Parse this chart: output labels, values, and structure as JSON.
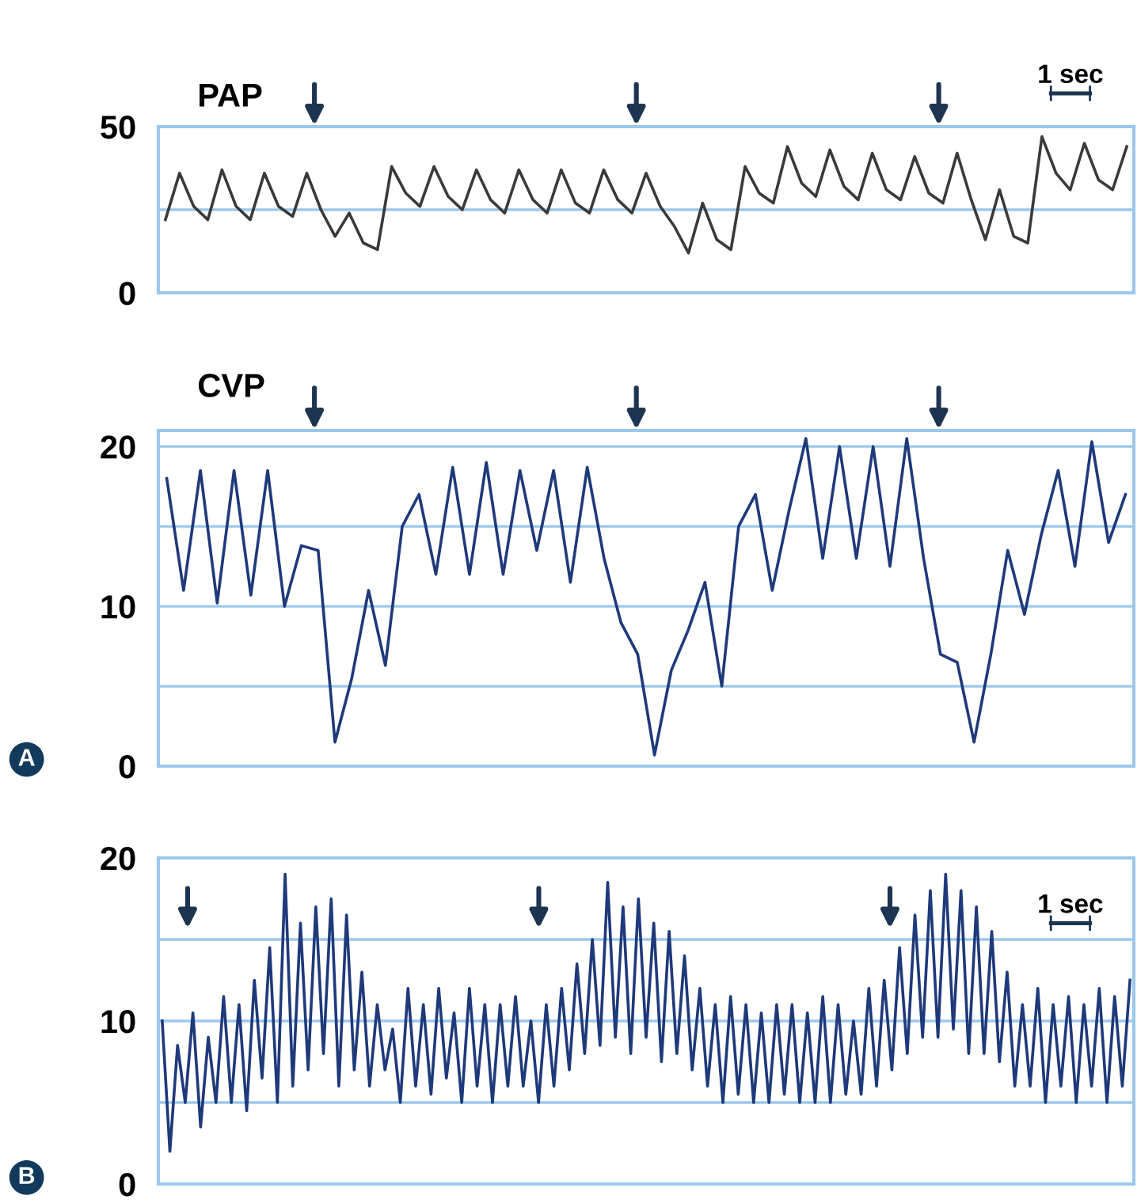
{
  "chart_data": [
    {
      "type": "line",
      "title": "PAP",
      "annotations": [
        "1 sec"
      ],
      "ylim": [
        0,
        50
      ],
      "yticks": [
        0,
        50
      ],
      "ref_lines": [
        {
          "axis": "y",
          "value": 25
        }
      ],
      "grid": "y",
      "tick_labels": "y",
      "legend": false,
      "categories": [
        null,
        null,
        null,
        null,
        null,
        null,
        null,
        null,
        null,
        null,
        null,
        null,
        null,
        null,
        null,
        null,
        null,
        null,
        null,
        null,
        null,
        null,
        null,
        null,
        null,
        null,
        null,
        null,
        null,
        null,
        null,
        null,
        null,
        null,
        null,
        null,
        null,
        null,
        null,
        null,
        null,
        null,
        null,
        null,
        null,
        null,
        null,
        null,
        null,
        null,
        null,
        null,
        null,
        null,
        null,
        null,
        null,
        null,
        null,
        null,
        null,
        null,
        null,
        null,
        null,
        null,
        null,
        null,
        null
      ],
      "series": [
        {
          "color": "#3a3a3a",
          "values": [
            22,
            36,
            26,
            22,
            37,
            26,
            22,
            36,
            26,
            23,
            36,
            25,
            17,
            24,
            15,
            13,
            38,
            30,
            26,
            38,
            29,
            25,
            37,
            28,
            24,
            37,
            28,
            24,
            37,
            27,
            24,
            37,
            28,
            24,
            36,
            26,
            20,
            12,
            27,
            16,
            13,
            38,
            30,
            27,
            44,
            33,
            29,
            43,
            32,
            28,
            42,
            31,
            28,
            41,
            30,
            27,
            42,
            28,
            16,
            31,
            17,
            15,
            47,
            36,
            31,
            45,
            34,
            31,
            44
          ]
        }
      ]
    },
    {
      "type": "line",
      "title": "CVP",
      "annotations": [
        "A"
      ],
      "ylim": [
        0,
        21
      ],
      "yticks": [
        0,
        10,
        20
      ],
      "ref_lines": [
        {
          "axis": "y",
          "value": 5
        },
        {
          "axis": "y",
          "value": 15
        }
      ],
      "grid": "y",
      "tick_labels": "y",
      "legend": false,
      "categories": [
        null,
        null,
        null,
        null,
        null,
        null,
        null,
        null,
        null,
        null,
        null,
        null,
        null,
        null,
        null,
        null,
        null,
        null,
        null,
        null,
        null,
        null,
        null,
        null,
        null,
        null,
        null,
        null,
        null,
        null,
        null,
        null,
        null,
        null,
        null,
        null,
        null,
        null,
        null,
        null,
        null,
        null,
        null,
        null,
        null,
        null,
        null,
        null,
        null,
        null,
        null,
        null,
        null,
        null,
        null,
        null,
        null,
        null
      ],
      "series": [
        {
          "color": "#1f3a7a",
          "values": [
            18,
            11,
            18.5,
            10.2,
            18.5,
            10.7,
            18.5,
            10,
            13.8,
            13.5,
            1.5,
            5.5,
            11,
            6.3,
            15,
            17,
            12,
            18.7,
            12,
            19,
            12,
            18.5,
            13.5,
            18.5,
            11.5,
            18.7,
            13,
            9,
            7,
            0.7,
            6,
            8.5,
            11.5,
            5,
            15,
            17,
            11,
            16,
            20.5,
            13,
            20,
            13,
            20,
            12.5,
            20.5,
            13,
            7,
            6.5,
            1.5,
            7,
            13.5,
            9.5,
            14.5,
            18.5,
            12.5,
            20.3,
            14,
            17
          ]
        }
      ]
    },
    {
      "type": "line",
      "annotations": [
        "1 sec",
        "B"
      ],
      "ylim": [
        0,
        20
      ],
      "yticks": [
        0,
        10,
        20
      ],
      "ref_lines": [
        {
          "axis": "y",
          "value": 5
        },
        {
          "axis": "y",
          "value": 10
        },
        {
          "axis": "y",
          "value": 15
        }
      ],
      "grid": false,
      "tick_labels": "y",
      "legend": false,
      "categories": [
        null,
        null,
        null,
        null,
        null,
        null,
        null,
        null,
        null,
        null,
        null,
        null,
        null,
        null,
        null,
        null,
        null,
        null,
        null,
        null,
        null,
        null,
        null,
        null,
        null,
        null,
        null,
        null,
        null,
        null,
        null,
        null,
        null,
        null,
        null,
        null,
        null,
        null,
        null,
        null,
        null,
        null,
        null,
        null,
        null,
        null,
        null,
        null,
        null,
        null,
        null,
        null,
        null,
        null,
        null,
        null,
        null,
        null,
        null,
        null,
        null,
        null,
        null,
        null,
        null,
        null,
        null,
        null,
        null,
        null,
        null,
        null,
        null,
        null,
        null,
        null,
        null,
        null,
        null,
        null,
        null,
        null,
        null,
        null,
        null,
        null,
        null,
        null,
        null,
        null,
        null,
        null,
        null,
        null,
        null,
        null,
        null,
        null,
        null,
        null,
        null,
        null,
        null,
        null,
        null,
        null,
        null,
        null,
        null,
        null,
        null,
        null,
        null,
        null,
        null,
        null,
        null,
        null,
        null,
        null,
        null,
        null,
        null,
        null,
        null,
        null,
        null
      ],
      "series": [
        {
          "color": "#1f3a7a",
          "values": [
            10,
            2,
            8.5,
            5,
            10.5,
            3.5,
            9,
            5,
            11.5,
            5,
            11,
            4.5,
            12.5,
            6.5,
            14.5,
            5,
            19,
            6,
            16,
            7,
            17,
            8,
            17.5,
            6,
            16.5,
            7,
            13,
            6,
            11,
            7,
            9.5,
            5,
            12,
            6,
            11,
            5.5,
            12,
            6.5,
            10.5,
            5,
            12,
            6,
            11,
            5,
            11,
            6,
            11.5,
            6,
            10,
            5,
            11,
            6,
            12,
            7,
            13.5,
            8,
            15,
            8.5,
            18.5,
            9,
            17,
            8,
            17.5,
            9,
            16,
            7.5,
            15.5,
            8,
            14,
            7,
            12,
            6,
            11,
            5,
            11.5,
            5.5,
            11,
            5,
            10.5,
            5,
            11,
            5.5,
            11,
            5,
            10.5,
            5,
            11.5,
            5,
            11,
            5.5,
            10,
            5.5,
            12,
            6,
            12.5,
            7,
            14.5,
            8,
            16.5,
            9,
            18,
            9,
            19,
            9.5,
            18,
            8,
            17,
            8,
            15.5,
            7.5,
            13,
            6,
            11,
            6,
            12,
            5,
            11,
            6,
            11.5,
            5,
            11,
            6,
            12,
            5,
            11.5,
            6,
            12.5
          ]
        }
      ]
    }
  ]
}
